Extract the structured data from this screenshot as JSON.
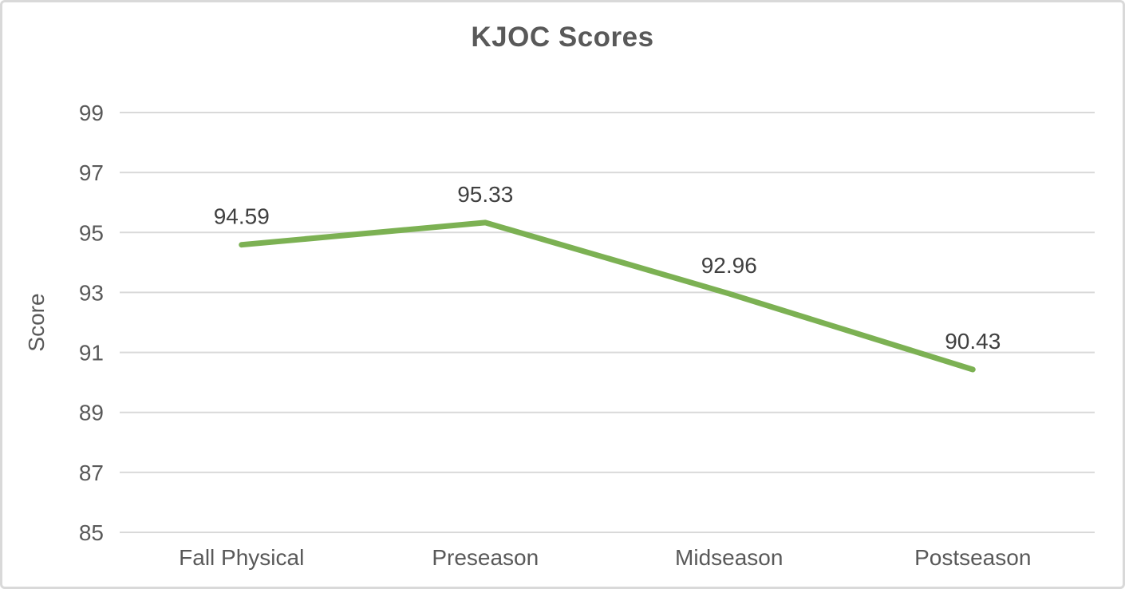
{
  "chart_data": {
    "type": "line",
    "title": "KJOC Scores",
    "xlabel": "",
    "ylabel": "Score",
    "categories": [
      "Fall Physical",
      "Preseason",
      "Midseason",
      "Postseason"
    ],
    "values": [
      94.59,
      95.33,
      92.96,
      90.43
    ],
    "data_labels": [
      "94.59",
      "95.33",
      "92.96",
      "90.43"
    ],
    "ylim": [
      85,
      99
    ],
    "yticks": [
      85,
      87,
      89,
      91,
      93,
      95,
      97,
      99
    ],
    "grid": true,
    "legend_position": "none",
    "data_label_position": "above",
    "colors": {
      "line": "#7CB153",
      "gridline": "#D9D9D9",
      "axis_text": "#595959",
      "data_label_text": "#404040",
      "title_text": "#595959",
      "card_border": "#D9D9D9",
      "background": "#FFFFFF"
    }
  }
}
